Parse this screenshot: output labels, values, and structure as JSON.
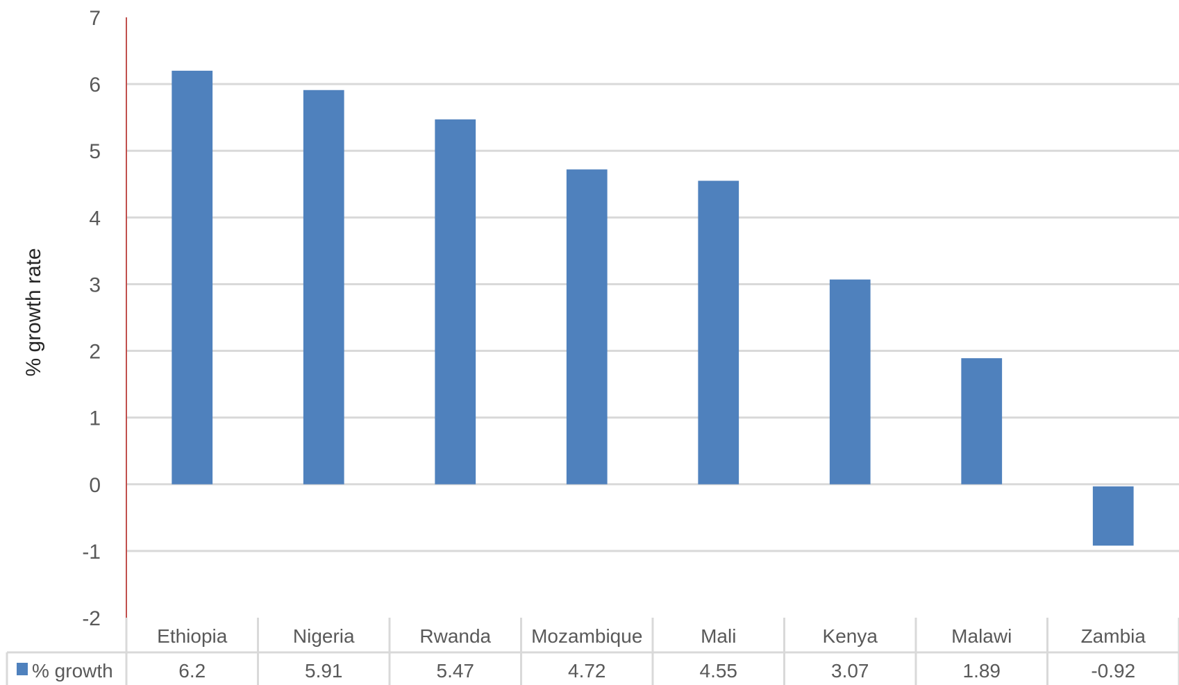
{
  "chart_data": {
    "type": "bar",
    "categories": [
      "Ethiopia",
      "Nigeria",
      "Rwanda",
      "Mozambique",
      "Mali",
      "Kenya",
      "Malawi",
      "Zambia"
    ],
    "series": [
      {
        "name": "% growth",
        "values": [
          6.2,
          5.91,
          5.47,
          4.72,
          4.55,
          3.07,
          1.89,
          -0.92
        ],
        "color": "#4f81bd"
      }
    ],
    "value_labels": [
      "6.2",
      "5.91",
      "5.47",
      "4.72",
      "4.55",
      "3.07",
      "1.89",
      "-0.92"
    ],
    "ylabel": "% growth rate",
    "xlabel": "",
    "ylim": [
      -2,
      7
    ],
    "yticks": [
      7,
      6,
      5,
      4,
      3,
      2,
      1,
      0,
      -1,
      -2
    ],
    "ytick_labels": [
      "7",
      "6",
      "5",
      "4",
      "3",
      "2",
      "1",
      "0",
      "-1",
      "-2"
    ],
    "grid": true,
    "legend": "data-table",
    "data_table": true,
    "colors": {
      "bar": "#4f81bd",
      "grid": "#d9d9d9",
      "axis": "#c0504d",
      "text": "#595959"
    }
  }
}
